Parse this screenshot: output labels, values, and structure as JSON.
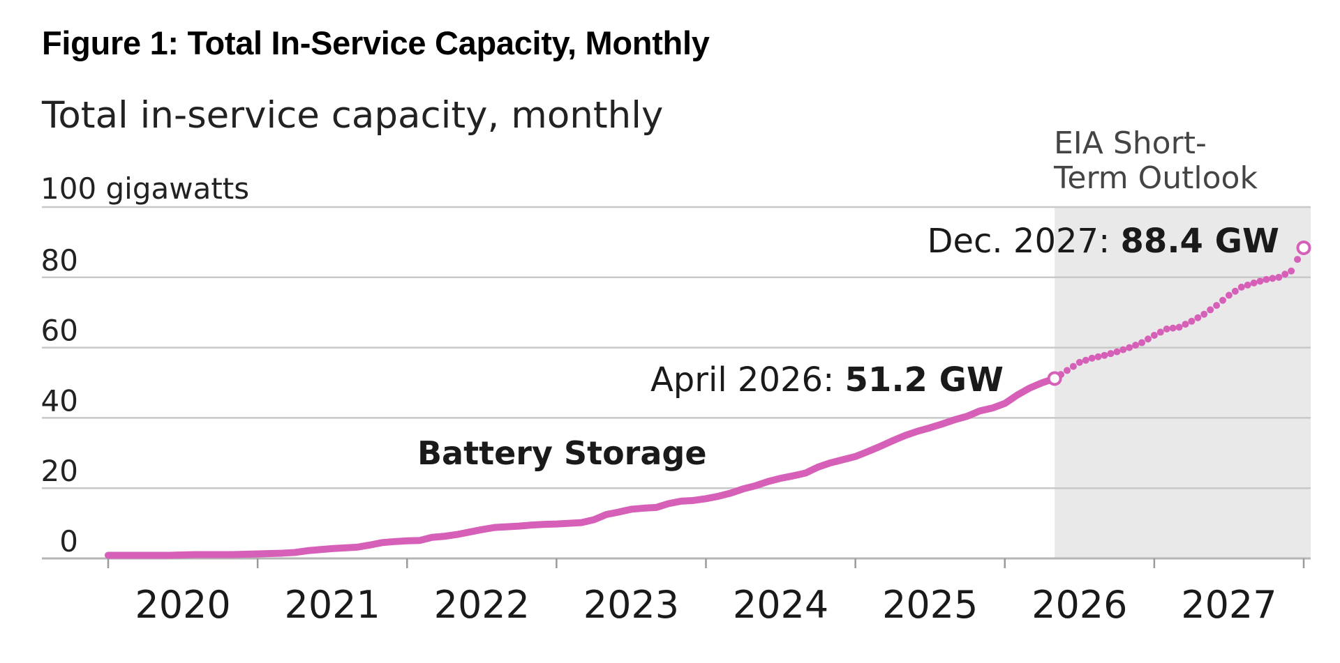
{
  "figure_title": "Figure 1: Total In-Service Capacity, Monthly",
  "chart_data": {
    "type": "line",
    "title": "Total in-service capacity, monthly",
    "ylabel": "100 gigawatts",
    "ytick_labels": [
      "0",
      "20",
      "40",
      "60",
      "80",
      "100 gigawatts"
    ],
    "yticks": [
      0,
      20,
      40,
      60,
      80,
      100
    ],
    "ylim": [
      0,
      100
    ],
    "xlim": [
      "2019-12-01",
      "2027-12-01"
    ],
    "xtick_labels": [
      "2020",
      "2021",
      "2022",
      "2023",
      "2024",
      "2025",
      "2026",
      "2027"
    ],
    "grid": true,
    "shaded_region": {
      "from": "2026-04-01",
      "to": "2027-12-01",
      "label": "EIA Short-Term Outlook",
      "label_lines": [
        "EIA Short-",
        "Term Outlook"
      ],
      "color": "#e9e9e9"
    },
    "series_label": "Battery Storage",
    "line_color": "#d660b8",
    "annotations": [
      {
        "prefix": "April 2026:",
        "value": "51.2 GW",
        "x": "2026-04-01",
        "y": 51.2
      },
      {
        "prefix": "Dec. 2027:",
        "value": "88.4 GW",
        "x": "2027-12-01",
        "y": 88.4
      }
    ],
    "series": [
      {
        "style": "solid",
        "x": [
          "2019-12",
          "2020-01",
          "2020-02",
          "2020-03",
          "2020-04",
          "2020-05",
          "2020-06",
          "2020-07",
          "2020-08",
          "2020-09",
          "2020-10",
          "2020-11",
          "2020-12",
          "2021-01",
          "2021-02",
          "2021-03",
          "2021-04",
          "2021-05",
          "2021-06",
          "2021-07",
          "2021-08",
          "2021-09",
          "2021-10",
          "2021-11",
          "2021-12",
          "2022-01",
          "2022-02",
          "2022-03",
          "2022-04",
          "2022-05",
          "2022-06",
          "2022-07",
          "2022-08",
          "2022-09",
          "2022-10",
          "2022-11",
          "2022-12",
          "2023-01",
          "2023-02",
          "2023-03",
          "2023-04",
          "2023-05",
          "2023-06",
          "2023-07",
          "2023-08",
          "2023-09",
          "2023-10",
          "2023-11",
          "2023-12",
          "2024-01",
          "2024-02",
          "2024-03",
          "2024-04",
          "2024-05",
          "2024-06",
          "2024-07",
          "2024-08",
          "2024-09",
          "2024-10",
          "2024-11",
          "2024-12",
          "2025-01",
          "2025-02",
          "2025-03",
          "2025-04",
          "2025-05",
          "2025-06",
          "2025-07",
          "2025-08",
          "2025-09",
          "2025-10",
          "2025-11",
          "2025-12",
          "2026-01",
          "2026-02",
          "2026-03",
          "2026-04"
        ],
        "values": [
          0.9,
          0.9,
          0.9,
          0.9,
          0.9,
          0.9,
          1.0,
          1.1,
          1.1,
          1.1,
          1.1,
          1.2,
          1.3,
          1.4,
          1.5,
          1.7,
          2.2,
          2.5,
          2.8,
          3.0,
          3.2,
          3.8,
          4.5,
          4.8,
          5.0,
          5.1,
          6.0,
          6.3,
          6.8,
          7.5,
          8.2,
          8.8,
          9.0,
          9.2,
          9.5,
          9.7,
          9.8,
          10.0,
          10.2,
          11.0,
          12.5,
          13.2,
          14.0,
          14.3,
          14.5,
          15.6,
          16.3,
          16.5,
          17.0,
          17.7,
          18.6,
          19.8,
          20.7,
          21.9,
          22.8,
          23.5,
          24.3,
          26.0,
          27.2,
          28.1,
          29.0,
          30.4,
          31.9,
          33.5,
          35.0,
          36.2,
          37.2,
          38.3,
          39.5,
          40.5,
          42.0,
          42.8,
          44.1,
          46.5,
          48.5,
          50.0,
          51.2
        ]
      },
      {
        "style": "dotted",
        "x": [
          "2026-04",
          "2026-05",
          "2026-06",
          "2026-07",
          "2026-08",
          "2026-09",
          "2026-10",
          "2026-11",
          "2026-12",
          "2027-01",
          "2027-02",
          "2027-03",
          "2027-04",
          "2027-05",
          "2027-06",
          "2027-07",
          "2027-08",
          "2027-09",
          "2027-10",
          "2027-11",
          "2027-12"
        ],
        "values": [
          51.2,
          53.5,
          55.8,
          57.0,
          57.8,
          58.8,
          60.0,
          61.4,
          63.5,
          65.3,
          65.8,
          67.5,
          69.5,
          72.0,
          74.9,
          77.2,
          78.4,
          79.4,
          80.0,
          81.8,
          88.4
        ]
      }
    ]
  }
}
